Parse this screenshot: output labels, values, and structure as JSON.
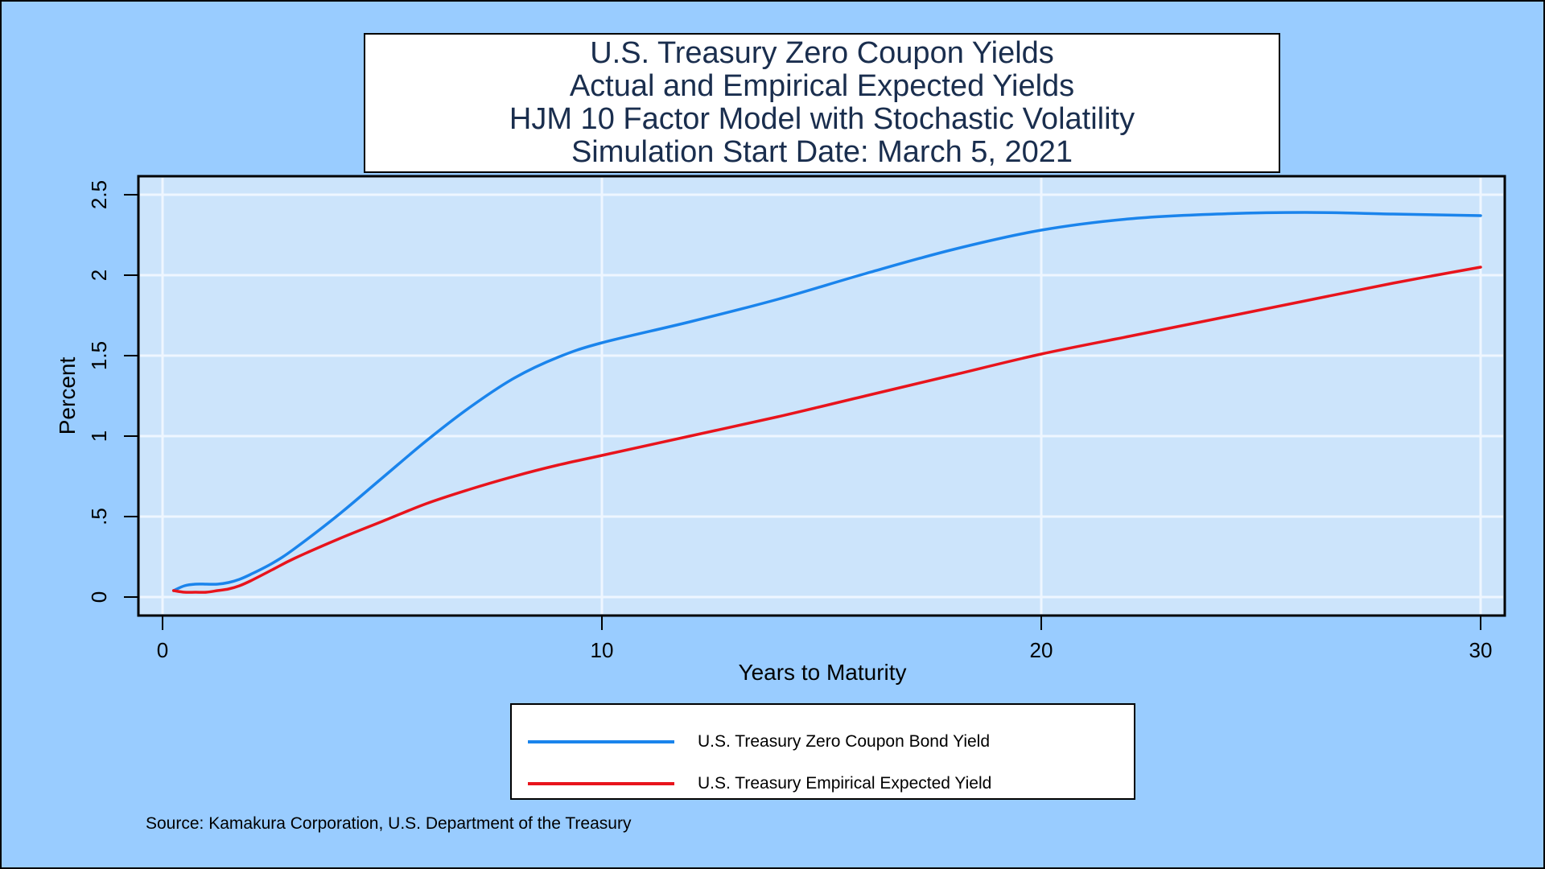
{
  "title_lines": [
    "U.S. Treasury Zero Coupon Yields",
    "Actual and Empirical Expected Yields",
    "HJM 10 Factor Model with Stochastic Volatility",
    "Simulation Start Date: March 5, 2021"
  ],
  "source": "Source: Kamakura Corporation, U.S. Department of the Treasury",
  "colors": {
    "background": "#99ccff",
    "plot_area": "#cce4fb",
    "gridline": "#eef6ff",
    "zero_coupon": "#1a84ec",
    "expected": "#e8141c"
  },
  "chart_data": {
    "type": "line",
    "xlabel": "Years to Maturity",
    "ylabel": "Percent",
    "xlim": [
      0,
      30
    ],
    "ylim": [
      0,
      2.5
    ],
    "x_ticks": [
      {
        "value": 0,
        "label": "0"
      },
      {
        "value": 10,
        "label": "10"
      },
      {
        "value": 20,
        "label": "20"
      },
      {
        "value": 30,
        "label": "30"
      }
    ],
    "y_ticks": [
      {
        "value": 0,
        "label": "0"
      },
      {
        "value": 0.5,
        "label": ".5"
      },
      {
        "value": 1,
        "label": "1"
      },
      {
        "value": 1.5,
        "label": "1.5"
      },
      {
        "value": 2,
        "label": "2"
      },
      {
        "value": 2.5,
        "label": "2.5"
      }
    ],
    "grid": true,
    "legend_position": "bottom",
    "series": [
      {
        "name": "U.S. Treasury Zero Coupon Bond Yield",
        "color": "#1a84ec",
        "x": [
          0.25,
          0.5,
          0.75,
          1,
          1.25,
          1.5,
          1.75,
          2,
          2.5,
          3,
          4,
          5,
          6,
          7,
          8,
          9,
          10,
          12,
          14,
          16,
          18,
          20,
          22,
          24,
          26,
          28,
          30
        ],
        "y": [
          0.04,
          0.07,
          0.08,
          0.08,
          0.08,
          0.09,
          0.11,
          0.14,
          0.21,
          0.3,
          0.51,
          0.74,
          0.97,
          1.18,
          1.36,
          1.49,
          1.58,
          1.71,
          1.85,
          2.01,
          2.16,
          2.28,
          2.35,
          2.38,
          2.39,
          2.38,
          2.37
        ]
      },
      {
        "name": "U.S. Treasury Empirical Expected Yield",
        "color": "#e8141c",
        "x": [
          0.25,
          0.5,
          0.75,
          1,
          1.25,
          1.5,
          1.75,
          2,
          2.5,
          3,
          4,
          5,
          6,
          7,
          8,
          9,
          10,
          12,
          14,
          16,
          18,
          20,
          22,
          24,
          26,
          28,
          30
        ],
        "y": [
          0.04,
          0.03,
          0.03,
          0.03,
          0.04,
          0.05,
          0.07,
          0.1,
          0.17,
          0.24,
          0.36,
          0.47,
          0.58,
          0.67,
          0.75,
          0.82,
          0.88,
          1.0,
          1.12,
          1.25,
          1.38,
          1.51,
          1.62,
          1.73,
          1.84,
          1.95,
          2.05
        ]
      }
    ]
  }
}
